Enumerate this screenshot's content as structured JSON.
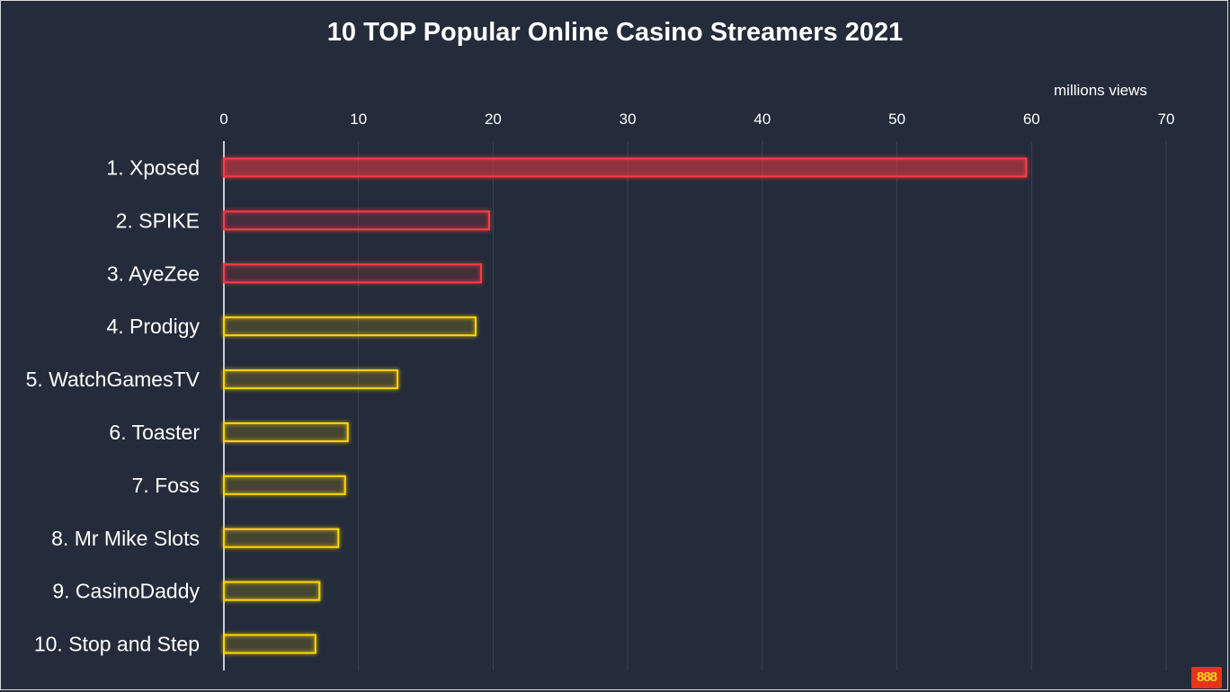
{
  "title": "10 TOP Popular Online Casino Streamers 2021",
  "unit_label": "millions views",
  "logo_text": "888",
  "colors": {
    "background": "#242b3a",
    "grid": "#3a4252",
    "axis": "#ffffff",
    "text": "#ffffff",
    "top3": "#ff3b45",
    "rest": "#ffd600"
  },
  "chart_data": {
    "type": "bar",
    "orientation": "horizontal",
    "title": "10 TOP Popular Online Casino Streamers 2021",
    "xlabel": "millions views",
    "ylabel": "",
    "xlim": [
      0,
      70
    ],
    "ticks": [
      0,
      10,
      20,
      30,
      40,
      50,
      60,
      70
    ],
    "grid": true,
    "axis_position": "top",
    "categories": [
      "1. Xposed",
      "2. SPIKE",
      "3. AyeZee",
      "4. Prodigy",
      "5. WatchGamesTV",
      "6. Toaster",
      "7. Foss",
      "8. Mr Mike Slots",
      "9. CasinoDaddy",
      "10. Stop and Step"
    ],
    "values": [
      59.6,
      19.7,
      19.1,
      18.7,
      12.9,
      9.2,
      9.0,
      8.5,
      7.1,
      6.8
    ],
    "bar_colors": [
      "#ff3b45",
      "#ff3b45",
      "#ff3b45",
      "#ffd600",
      "#ffd600",
      "#ffd600",
      "#ffd600",
      "#ffd600",
      "#ffd600",
      "#ffd600"
    ]
  }
}
